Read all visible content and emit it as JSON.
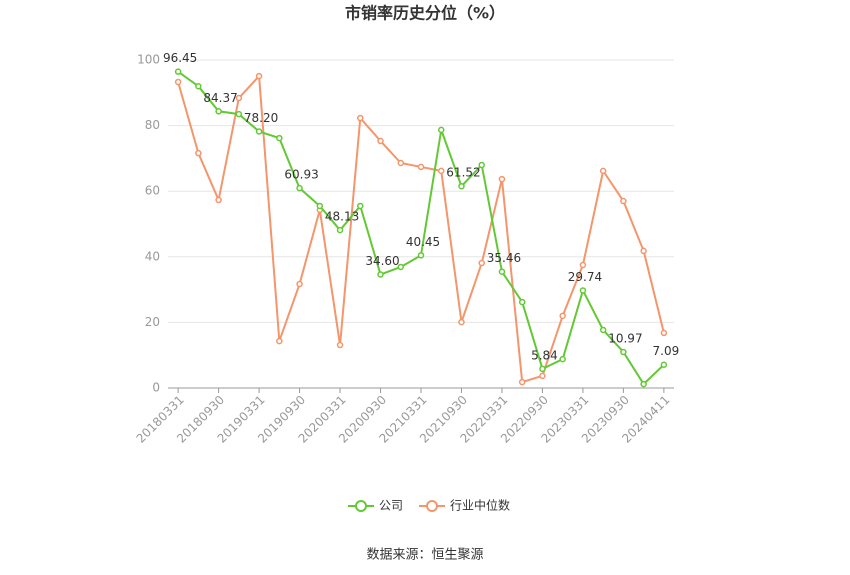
{
  "chart_data": {
    "type": "line",
    "title": "市销率历史分位（%）",
    "categories": [
      "20180331",
      null,
      "20180930",
      null,
      "20190331",
      null,
      "20190930",
      null,
      "20200331",
      null,
      "20200930",
      null,
      "20210331",
      null,
      "20210930",
      null,
      "20220331",
      null,
      "20220930",
      null,
      "20230331",
      null,
      "20230930",
      null,
      "20240411"
    ],
    "series": [
      {
        "name": "公司",
        "color": "#62c934",
        "values": [
          96.45,
          92,
          84.37,
          83.5,
          78.2,
          76.2,
          60.93,
          55.5,
          48.13,
          55.5,
          34.6,
          36.9,
          40.45,
          78.7,
          61.52,
          68,
          35.46,
          26.2,
          5.84,
          8.8,
          29.74,
          17.7,
          10.97,
          1.2,
          7.09
        ],
        "value_labels": [
          "96.45",
          null,
          "84.37",
          null,
          "78.20",
          null,
          "60.93",
          null,
          "48.13",
          null,
          "34.60",
          null,
          "40.45",
          null,
          "61.52",
          null,
          "35.46",
          null,
          "5.84",
          null,
          "29.74",
          null,
          "10.97",
          null,
          "7.09"
        ]
      },
      {
        "name": "行业中位数",
        "color": "#f4956b",
        "values": [
          93.3,
          71.6,
          57.3,
          88.4,
          95.1,
          14.3,
          31.7,
          54.3,
          13.1,
          82.3,
          75.3,
          68.6,
          67.4,
          66.2,
          20.1,
          38.1,
          63.7,
          1.8,
          3.7,
          22,
          37.5,
          66.2,
          57,
          41.8,
          16.8
        ]
      }
    ],
    "ylim": [
      0,
      100
    ],
    "yticks": [
      0,
      20,
      40,
      60,
      80,
      100
    ],
    "grid": true,
    "legend": "bottom",
    "source": "数据来源：恒生聚源"
  }
}
